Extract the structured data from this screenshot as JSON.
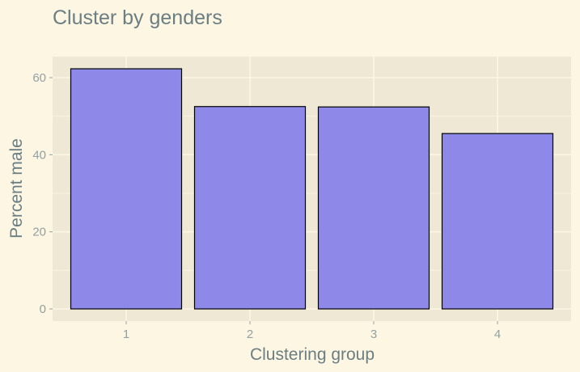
{
  "chart_data": {
    "type": "bar",
    "title": "Cluster by genders",
    "xlabel": "Clustering group",
    "ylabel": "Percent male",
    "categories": [
      "1",
      "2",
      "3",
      "4"
    ],
    "values": [
      62.3,
      52.5,
      52.4,
      45.5
    ],
    "ylim": [
      0,
      65
    ],
    "yticks": [
      "0",
      "20",
      "40",
      "60"
    ],
    "grid": true,
    "legend": "none"
  },
  "colors": {
    "page_background": "#fdf6e3",
    "panel_background": "#eee8d5",
    "grid": "#fdf6e3",
    "bar_fill": "#8e89e8",
    "bar_outline": "#000000",
    "text": "#6b7e82",
    "tick_text": "#93a1a1"
  }
}
